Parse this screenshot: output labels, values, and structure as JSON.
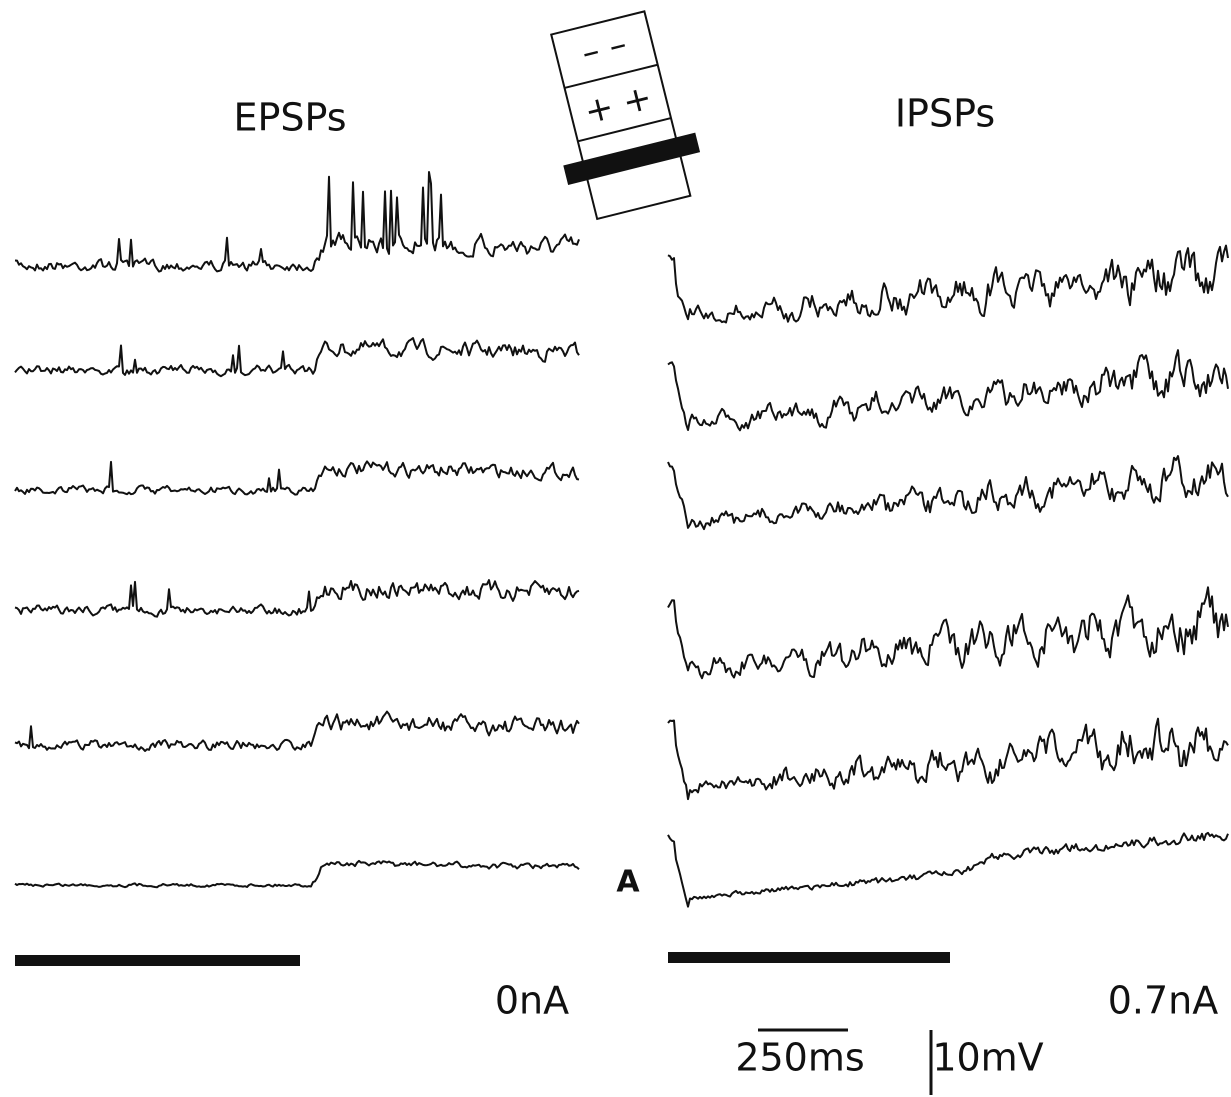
{
  "left_panel": {
    "title": "EPSPs",
    "current": "0nA"
  },
  "right_panel": {
    "title": "IPSPs",
    "current": "0.7nA",
    "marker": "A"
  },
  "electrode": {
    "top": "– –",
    "middle": "+ +"
  },
  "scale": {
    "time": "250ms",
    "voltage": "10mV"
  }
}
